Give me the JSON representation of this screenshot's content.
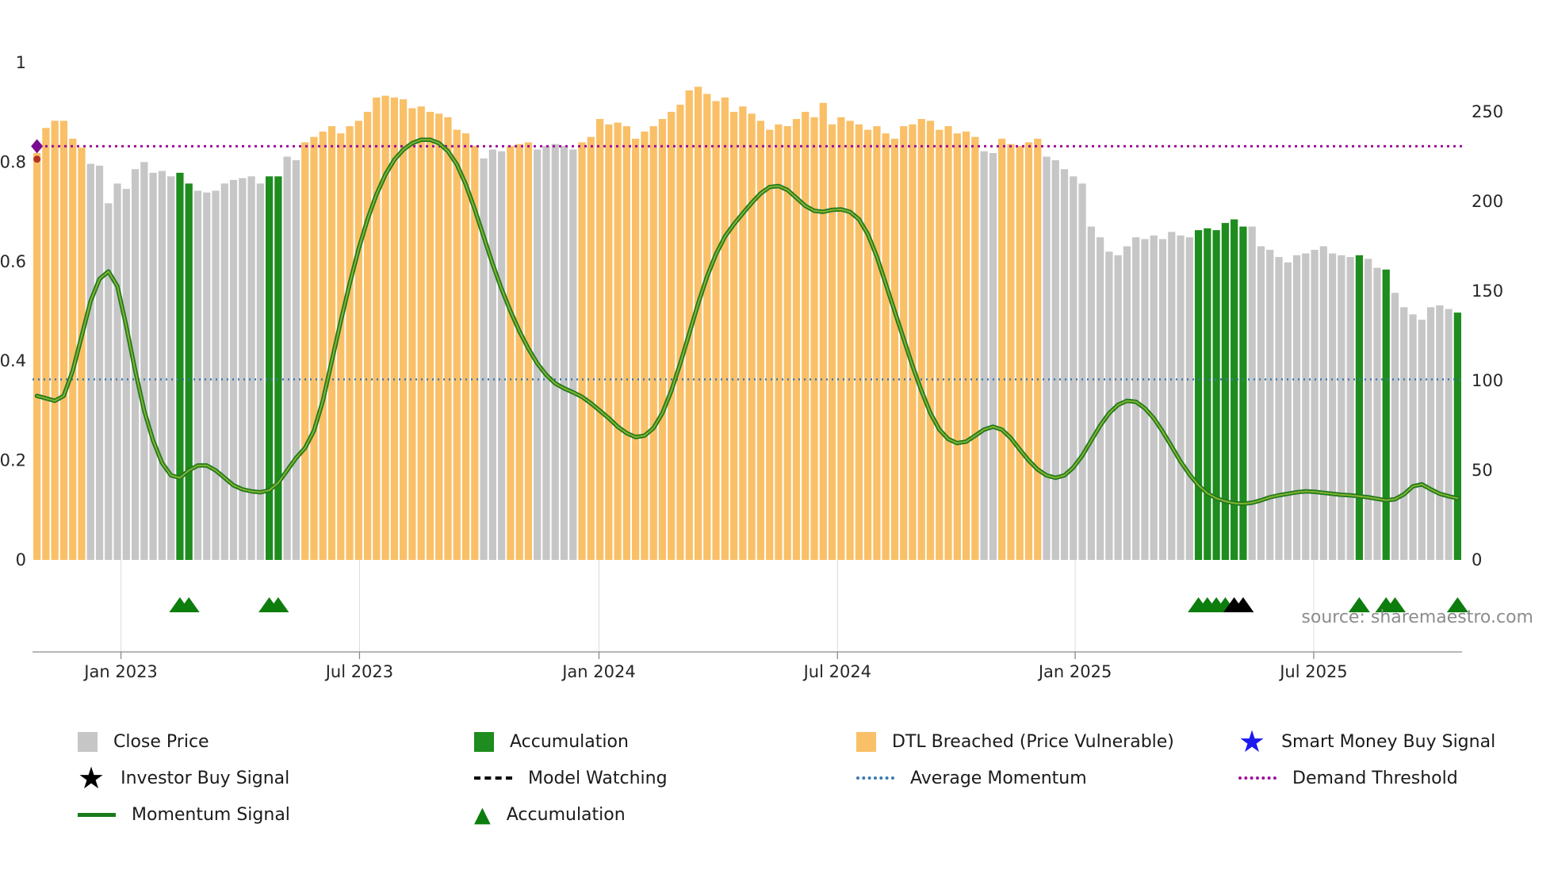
{
  "meta": {
    "source_text": "source: sharemaestro.com"
  },
  "colors": {
    "bar_c": "#c6c6c6",
    "bar_d": "#f9c068",
    "bar_a": "#1e8c1e",
    "momentum_outer": "#217821",
    "momentum_inner": "#83b52c",
    "average_momentum": "#3b78b0",
    "demand_threshold": "#a0109a",
    "accumulation_marker": "#0d7d0d",
    "investor_marker": "#000000",
    "smart_money": "#1a1aee",
    "axis": "#8a8a8a",
    "tick_text": "#262626",
    "gridline": "#dcdcdc",
    "start_diamond": "#7a0b8e",
    "start_dot": "#b23322"
  },
  "chart_data": {
    "type": "bar+line",
    "title": "",
    "x_ticks": [
      {
        "label": "Jan 2023",
        "index": 9.4
      },
      {
        "label": "Jul 2023",
        "index": 36.1
      },
      {
        "label": "Jan 2024",
        "index": 62.9
      },
      {
        "label": "Jul 2024",
        "index": 89.6
      },
      {
        "label": "Jan 2025",
        "index": 116.2
      },
      {
        "label": "Jul 2025",
        "index": 142.9
      }
    ],
    "left_axis": {
      "range": [
        0,
        1
      ],
      "ticks": [
        {
          "label": "1",
          "value": 1
        },
        {
          "label": "0.8",
          "value": 0.8
        },
        {
          "label": "0.6",
          "value": 0.6
        },
        {
          "label": "0.4",
          "value": 0.4
        },
        {
          "label": "0.2",
          "value": 0.2
        },
        {
          "label": "0",
          "value": 0
        }
      ]
    },
    "right_axis": {
      "max": 250,
      "ticks": [
        {
          "label": "250",
          "value": 250
        },
        {
          "label": "200",
          "value": 200
        },
        {
          "label": "150",
          "value": 150
        },
        {
          "label": "100",
          "value": 100
        },
        {
          "label": "50",
          "value": 50
        },
        {
          "label": "0",
          "value": 0
        }
      ]
    },
    "reference_lines": {
      "average_momentum": 0.363,
      "demand_threshold": 0.832
    },
    "bar_state_key": {
      "c": "close_price",
      "d": "dtl_breached_price_vulnerable",
      "a": "accumulation"
    },
    "bar_state_segments": [
      [
        "d",
        6
      ],
      [
        "c",
        10
      ],
      [
        "a",
        2
      ],
      [
        "c",
        8
      ],
      [
        "a",
        2
      ],
      [
        "c",
        2
      ],
      [
        "d",
        20
      ],
      [
        "c",
        3
      ],
      [
        "d",
        3
      ],
      [
        "c",
        5
      ],
      [
        "d",
        45
      ],
      [
        "c",
        2
      ],
      [
        "d",
        5
      ],
      [
        "c",
        17
      ],
      [
        "a",
        6
      ],
      [
        "c",
        12
      ],
      [
        "a",
        1
      ],
      [
        "c",
        2
      ],
      [
        "a",
        1
      ],
      [
        "c",
        7
      ],
      [
        "a",
        1
      ]
    ],
    "bar_prices": [
      227,
      241,
      245,
      245,
      235,
      230,
      221,
      220,
      199,
      210,
      207,
      218,
      222,
      216,
      217,
      214,
      216,
      210,
      206,
      205,
      206,
      210,
      212,
      213,
      214,
      210,
      214,
      214,
      225,
      223,
      233,
      236,
      239,
      242,
      238,
      242,
      245,
      250,
      258,
      259,
      258,
      257,
      252,
      253,
      250,
      249,
      247,
      240,
      238,
      231,
      224,
      229,
      228,
      231,
      232,
      233,
      229,
      231,
      232,
      231,
      229,
      233,
      236,
      246,
      243,
      244,
      242,
      235,
      239,
      242,
      246,
      250,
      254,
      262,
      264,
      260,
      256,
      258,
      250,
      253,
      249,
      245,
      240,
      243,
      242,
      246,
      250,
      247,
      255,
      243,
      247,
      245,
      243,
      240,
      242,
      238,
      235,
      242,
      243,
      246,
      245,
      240,
      242,
      238,
      239,
      236,
      228,
      227,
      235,
      232,
      231,
      233,
      235,
      225,
      223,
      218,
      214,
      210,
      186,
      180,
      172,
      170,
      175,
      180,
      179,
      181,
      179,
      183,
      181,
      180,
      184,
      185,
      184,
      188,
      190,
      186,
      186,
      175,
      173,
      169,
      166,
      170,
      171,
      173,
      175,
      171,
      170,
      169,
      170,
      168,
      163,
      162,
      149,
      141,
      137,
      134,
      141,
      142,
      140,
      138
    ],
    "momentum": [
      0.33,
      0.325,
      0.32,
      0.33,
      0.38,
      0.45,
      0.52,
      0.565,
      0.58,
      0.55,
      0.47,
      0.38,
      0.3,
      0.24,
      0.195,
      0.17,
      0.165,
      0.18,
      0.19,
      0.19,
      0.18,
      0.165,
      0.15,
      0.142,
      0.138,
      0.136,
      0.14,
      0.155,
      0.18,
      0.205,
      0.225,
      0.26,
      0.32,
      0.4,
      0.48,
      0.555,
      0.625,
      0.685,
      0.735,
      0.775,
      0.805,
      0.825,
      0.838,
      0.845,
      0.845,
      0.838,
      0.822,
      0.795,
      0.755,
      0.705,
      0.65,
      0.595,
      0.545,
      0.5,
      0.46,
      0.425,
      0.395,
      0.372,
      0.355,
      0.345,
      0.337,
      0.328,
      0.315,
      0.3,
      0.285,
      0.268,
      0.255,
      0.247,
      0.25,
      0.265,
      0.295,
      0.34,
      0.395,
      0.455,
      0.515,
      0.57,
      0.615,
      0.65,
      0.675,
      0.697,
      0.718,
      0.737,
      0.75,
      0.752,
      0.744,
      0.728,
      0.712,
      0.702,
      0.7,
      0.704,
      0.705,
      0.7,
      0.685,
      0.655,
      0.61,
      0.555,
      0.5,
      0.445,
      0.39,
      0.34,
      0.295,
      0.262,
      0.243,
      0.235,
      0.238,
      0.25,
      0.262,
      0.268,
      0.262,
      0.245,
      0.222,
      0.2,
      0.182,
      0.17,
      0.165,
      0.17,
      0.186,
      0.21,
      0.24,
      0.27,
      0.295,
      0.312,
      0.32,
      0.318,
      0.305,
      0.285,
      0.258,
      0.228,
      0.198,
      0.172,
      0.15,
      0.134,
      0.124,
      0.118,
      0.114,
      0.113,
      0.115,
      0.12,
      0.126,
      0.13,
      0.133,
      0.136,
      0.138,
      0.137,
      0.135,
      0.133,
      0.131,
      0.13,
      0.128,
      0.126,
      0.123,
      0.12,
      0.122,
      0.132,
      0.148,
      0.152,
      0.142,
      0.133,
      0.128,
      0.124
    ],
    "markers": {
      "accumulation_triangles": [
        16,
        17,
        26,
        27,
        130,
        131,
        132,
        133,
        148,
        151,
        152,
        159
      ],
      "investor_buy_triangles": [
        134,
        135
      ],
      "start_markers": [
        {
          "type": "diamond",
          "index": 0,
          "value": 0.832,
          "color": "#7a0b8e"
        },
        {
          "type": "dot",
          "index": 0,
          "value": 0.806,
          "color": "#b23322"
        }
      ]
    }
  },
  "legend": {
    "items": [
      {
        "id": "close-price",
        "label": "Close Price",
        "marker": "square",
        "color": "#c6c6c6"
      },
      {
        "id": "accumulation-bar",
        "label": "Accumulation",
        "marker": "square",
        "color": "#1e8c1e"
      },
      {
        "id": "dtl-breached",
        "label": "DTL Breached (Price Vulnerable)",
        "marker": "square",
        "color": "#f9c068"
      },
      {
        "id": "smart-money-buy-signal",
        "label": "Smart Money Buy Signal",
        "marker": "star",
        "color": "#1a1aee"
      },
      {
        "id": "investor-buy-signal",
        "label": "Investor Buy Signal",
        "marker": "star",
        "color": "#000000"
      },
      {
        "id": "model-watching",
        "label": "Model Watching",
        "marker": "dashed-line",
        "color": "#000000"
      },
      {
        "id": "average-momentum",
        "label": "Average Momentum",
        "marker": "dotted-line",
        "color": "#3b78b0"
      },
      {
        "id": "demand-threshold",
        "label": "Demand Threshold",
        "marker": "dotted-line",
        "color": "#a0109a"
      },
      {
        "id": "momentum-signal",
        "label": "Momentum Signal",
        "marker": "solid-line",
        "color": "#1a7a1a"
      },
      {
        "id": "accumulation-marker",
        "label": "Accumulation",
        "marker": "triangle",
        "color": "#0d7d0d"
      }
    ]
  }
}
